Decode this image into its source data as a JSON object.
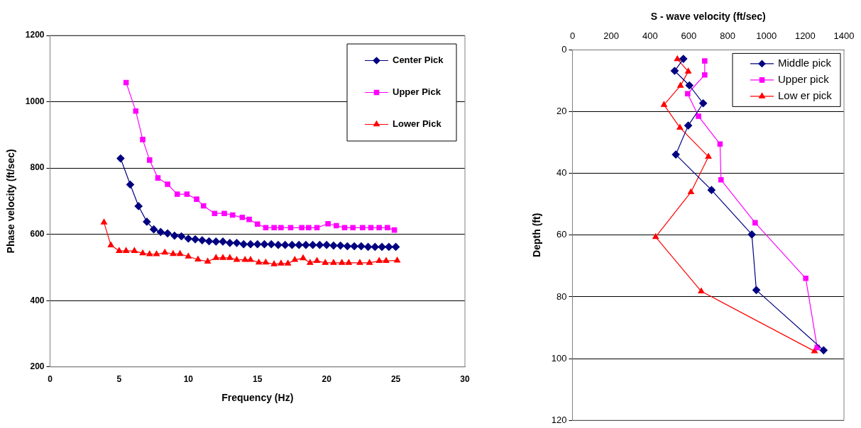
{
  "chart_data": [
    {
      "type": "line",
      "xlabel": "Frequency (Hz)",
      "ylabel": "Phase velocity (ft/sec)",
      "xlim": [
        0,
        30
      ],
      "xticks": [
        0,
        5,
        10,
        15,
        20,
        25,
        30
      ],
      "ylim": [
        200,
        1200
      ],
      "yticks": [
        200,
        400,
        600,
        800,
        1000,
        1200
      ],
      "grid": "y",
      "legend": "top right",
      "series": [
        {
          "name": "Center Pick",
          "color": "#000080",
          "marker": "diamond",
          "x": [
            5.1,
            5.8,
            6.4,
            7.0,
            7.5,
            8.0,
            8.5,
            9.0,
            9.5,
            10.0,
            10.5,
            11.0,
            11.5,
            12.0,
            12.5,
            13.0,
            13.5,
            14.0,
            14.5,
            15.0,
            15.5,
            16.0,
            16.5,
            17.0,
            17.5,
            18.0,
            18.5,
            19.0,
            19.5,
            20.0,
            20.5,
            21.0,
            21.5,
            22.0,
            22.5,
            23.0,
            23.5,
            24.0,
            24.5,
            25.0
          ],
          "values": [
            829,
            750,
            685,
            638,
            615,
            607,
            603,
            596,
            594,
            587,
            585,
            582,
            579,
            578,
            578,
            574,
            574,
            570,
            570,
            570,
            570,
            570,
            568,
            568,
            568,
            568,
            568,
            568,
            568,
            568,
            566,
            566,
            564,
            564,
            564,
            562,
            562,
            562,
            562,
            562
          ]
        },
        {
          "name": "Upper Pick",
          "color": "#ff00ff",
          "marker": "square",
          "x": [
            5.5,
            6.2,
            6.7,
            7.2,
            7.8,
            8.5,
            9.2,
            9.9,
            10.6,
            11.1,
            11.9,
            12.6,
            13.2,
            13.9,
            14.4,
            15.0,
            15.6,
            16.2,
            16.7,
            17.4,
            18.2,
            18.7,
            19.3,
            20.1,
            20.7,
            21.3,
            21.9,
            22.6,
            23.2,
            23.8,
            24.4,
            24.9
          ],
          "values": [
            1058,
            972,
            886,
            824,
            770,
            751,
            721,
            721,
            706,
            686,
            663,
            663,
            658,
            651,
            645,
            631,
            620,
            620,
            620,
            620,
            620,
            620,
            620,
            632,
            626,
            620,
            620,
            620,
            620,
            620,
            620,
            613
          ]
        },
        {
          "name": "Lower Pick",
          "color": "#ff0000",
          "marker": "triangle",
          "x": [
            3.9,
            4.4,
            5.0,
            5.5,
            6.1,
            6.7,
            7.2,
            7.7,
            8.3,
            8.9,
            9.4,
            10.0,
            10.7,
            11.4,
            12.0,
            12.5,
            13.0,
            13.5,
            14.1,
            14.5,
            15.1,
            15.6,
            16.2,
            16.7,
            17.2,
            17.7,
            18.3,
            18.8,
            19.3,
            19.9,
            20.5,
            21.1,
            21.6,
            22.4,
            23.1,
            23.8,
            24.3,
            25.1
          ],
          "values": [
            636,
            567,
            550,
            550,
            550,
            543,
            540,
            540,
            545,
            541,
            541,
            533,
            524,
            518,
            529,
            529,
            529,
            523,
            523,
            523,
            515,
            515,
            510,
            512,
            512,
            523,
            528,
            514,
            520,
            514,
            514,
            514,
            514,
            514,
            514,
            520,
            520,
            521
          ]
        }
      ]
    },
    {
      "type": "line",
      "xlabel": "S - wave velocity (ft/sec)",
      "ylabel": "Depth (ft)",
      "xlim": [
        0,
        1400
      ],
      "xticks": [
        0,
        200,
        400,
        600,
        800,
        1000,
        1200,
        1400
      ],
      "ylim": [
        120,
        0
      ],
      "yticks": [
        0,
        20,
        40,
        60,
        80,
        100,
        120
      ],
      "grid": "y",
      "legend": "top right",
      "series": [
        {
          "name": "Middle pick",
          "color": "#000080",
          "marker": "diamond",
          "x": [
            572,
            527,
            603,
            674,
            597,
            533,
            717,
            925,
            948,
            1295
          ],
          "values": [
            2.9,
            6.8,
            11.5,
            17.3,
            24.5,
            33.9,
            45.4,
            59.8,
            77.8,
            97.3
          ]
        },
        {
          "name": "Upper pick",
          "color": "#ff00ff",
          "marker": "square",
          "x": [
            682,
            682,
            594,
            650,
            761,
            766,
            942,
            1203,
            1262
          ],
          "values": [
            3.6,
            8.1,
            14.2,
            21.5,
            30.5,
            42.1,
            56,
            74,
            96.4
          ]
        },
        {
          "name": "Low er pick",
          "color": "#ff0000",
          "marker": "triangle",
          "x": [
            541,
            597,
            557,
            472,
            554,
            701,
            611,
            429,
            664,
            1248
          ],
          "values": [
            3.0,
            7.0,
            11.6,
            17.8,
            25.2,
            34.6,
            46.1,
            60.6,
            78.2,
            97.6
          ]
        }
      ]
    }
  ]
}
